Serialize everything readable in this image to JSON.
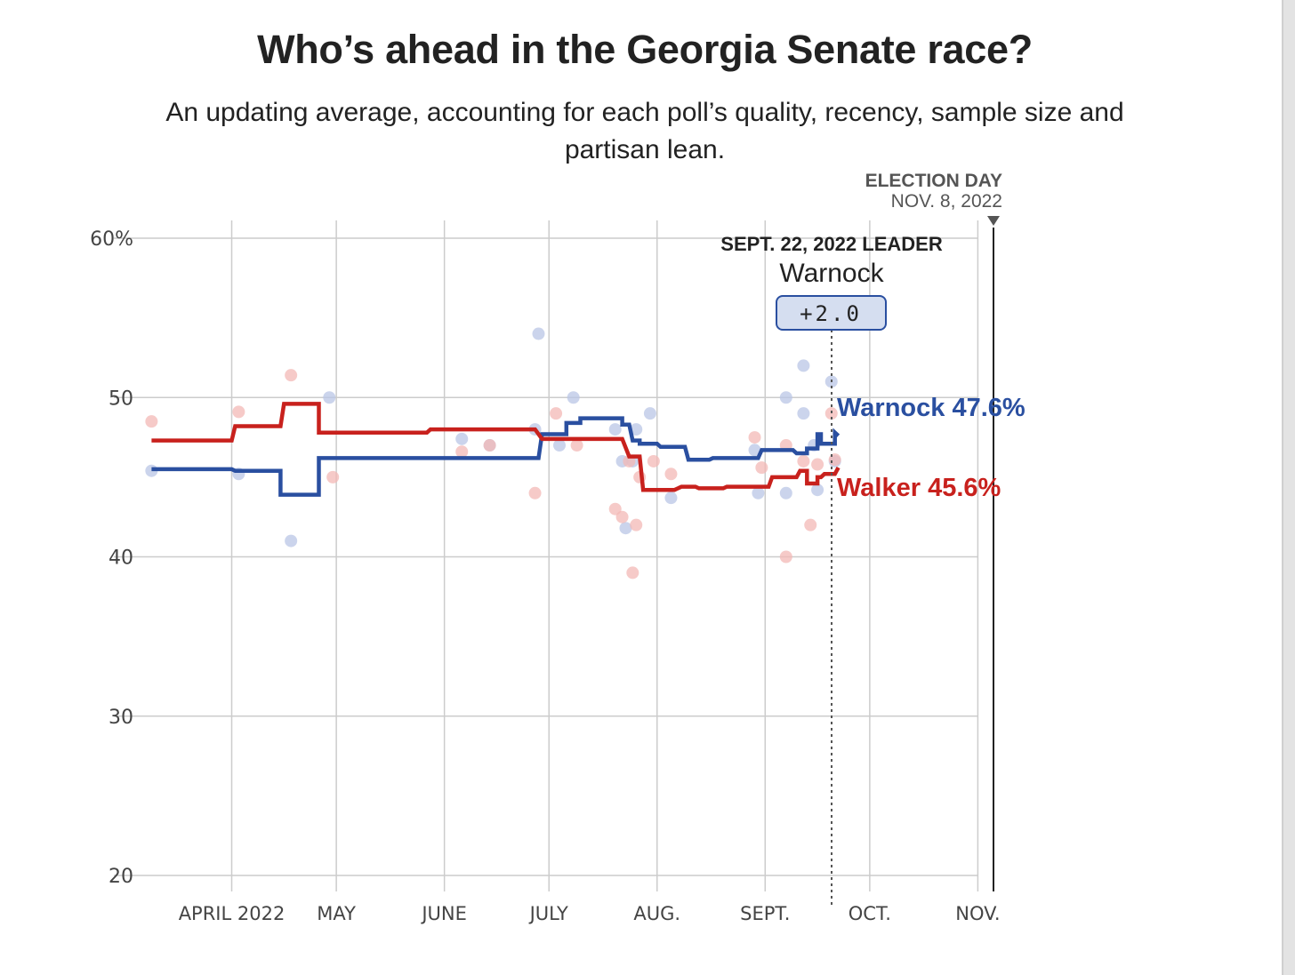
{
  "header": {
    "title": "Who’s ahead in the Georgia Senate race?",
    "subtitle": "An updating average, accounting for each poll’s quality, recency, sample size and partisan lean."
  },
  "colors": {
    "warnock": "#2a4fa0",
    "walker": "#c8211d",
    "warnock_dot": "#b9c6e6",
    "walker_dot": "#f3b8b6",
    "grid": "#cccccc"
  },
  "annotations": {
    "election_day_label": "ELECTION DAY",
    "election_day_date": "NOV. 8, 2022",
    "leader_label": "SEPT. 22, 2022 LEADER",
    "leader_name": "Warnock",
    "leader_margin": "+2.0",
    "warnock_end_label": "Warnock 47.6%",
    "walker_end_label": "Walker 45.6%"
  },
  "chart_data": {
    "type": "line",
    "title": "Who’s ahead in the Georgia Senate race?",
    "ylabel": "",
    "ylim": [
      20,
      60
    ],
    "yticks": [
      {
        "value": 60,
        "label": "60%"
      },
      {
        "value": 50,
        "label": "50"
      },
      {
        "value": 40,
        "label": "40"
      },
      {
        "value": 30,
        "label": "30"
      },
      {
        "value": 20,
        "label": "20"
      }
    ],
    "xticks": [
      {
        "day": 31,
        "label": "APRIL 2022"
      },
      {
        "day": 61,
        "label": "MAY"
      },
      {
        "day": 92,
        "label": "JUNE"
      },
      {
        "day": 122,
        "label": "JULY"
      },
      {
        "day": 153,
        "label": "AUG."
      },
      {
        "day": 184,
        "label": "SEPT."
      },
      {
        "day": 214,
        "label": "OCT."
      },
      {
        "day": 245,
        "label": "NOV."
      }
    ],
    "x_unit": "days since March 1, 2022",
    "xlim": [
      8,
      248
    ],
    "election_day": 252,
    "leader_day": 205,
    "series": [
      {
        "name": "Warnock",
        "color": "#2a4fa0",
        "points": [
          [
            8,
            45.5
          ],
          [
            31,
            45.5
          ],
          [
            32,
            45.4
          ],
          [
            45,
            45.4
          ],
          [
            45,
            43.9
          ],
          [
            56,
            43.9
          ],
          [
            56,
            46.2
          ],
          [
            107,
            46.2
          ],
          [
            119,
            46.2
          ],
          [
            120,
            47.7
          ],
          [
            127,
            47.7
          ],
          [
            127,
            48.4
          ],
          [
            131,
            48.4
          ],
          [
            131,
            48.7
          ],
          [
            143,
            48.7
          ],
          [
            143,
            48.3
          ],
          [
            145,
            48.3
          ],
          [
            146,
            47.3
          ],
          [
            148,
            47.3
          ],
          [
            148,
            47.1
          ],
          [
            153,
            47.1
          ],
          [
            154,
            46.9
          ],
          [
            161,
            46.9
          ],
          [
            162,
            46.1
          ],
          [
            168,
            46.1
          ],
          [
            169,
            46.2
          ],
          [
            182,
            46.2
          ],
          [
            183,
            46.7
          ],
          [
            192,
            46.7
          ],
          [
            193,
            46.5
          ],
          [
            196,
            46.5
          ],
          [
            196,
            46.8
          ],
          [
            199,
            46.8
          ],
          [
            199,
            47.7
          ],
          [
            200,
            47.7
          ],
          [
            200,
            47.1
          ],
          [
            204,
            47.1
          ],
          [
            204,
            47.8
          ],
          [
            205,
            47.6
          ]
        ]
      },
      {
        "name": "Walker",
        "color": "#c8211d",
        "points": [
          [
            8,
            47.3
          ],
          [
            31,
            47.3
          ],
          [
            32,
            48.2
          ],
          [
            45,
            48.2
          ],
          [
            46,
            49.6
          ],
          [
            56,
            49.6
          ],
          [
            56,
            47.8
          ],
          [
            87,
            47.8
          ],
          [
            88,
            48.0
          ],
          [
            115,
            48.0
          ],
          [
            118,
            48.0
          ],
          [
            120,
            47.4
          ],
          [
            143,
            47.4
          ],
          [
            145,
            46.3
          ],
          [
            148,
            46.3
          ],
          [
            149,
            44.2
          ],
          [
            158,
            44.2
          ],
          [
            160,
            44.4
          ],
          [
            164,
            44.4
          ],
          [
            165,
            44.3
          ],
          [
            172,
            44.3
          ],
          [
            173,
            44.4
          ],
          [
            185,
            44.4
          ],
          [
            186,
            45.0
          ],
          [
            193,
            45.0
          ],
          [
            194,
            45.4
          ],
          [
            196,
            45.4
          ],
          [
            196,
            44.6
          ],
          [
            199,
            44.6
          ],
          [
            199,
            45.0
          ],
          [
            200,
            45.0
          ],
          [
            201,
            45.2
          ],
          [
            204,
            45.2
          ],
          [
            205,
            45.6
          ]
        ]
      }
    ],
    "polls": {
      "Warnock": [
        [
          8,
          45.4
        ],
        [
          33,
          45.2
        ],
        [
          48,
          41.0
        ],
        [
          59,
          50.0
        ],
        [
          97,
          47.4
        ],
        [
          105,
          47.0
        ],
        [
          118,
          48.0
        ],
        [
          119,
          54.0
        ],
        [
          125,
          47.0
        ],
        [
          129,
          50.0
        ],
        [
          141,
          48.0
        ],
        [
          143,
          46.0
        ],
        [
          144,
          41.8
        ],
        [
          146,
          46.0
        ],
        [
          147,
          48.0
        ],
        [
          151,
          49.0
        ],
        [
          157,
          43.7
        ],
        [
          181,
          46.7
        ],
        [
          182,
          44.0
        ],
        [
          190,
          44.0
        ],
        [
          190,
          50.0
        ],
        [
          195,
          52.0
        ],
        [
          195,
          49.0
        ],
        [
          198,
          47.0
        ],
        [
          199,
          44.2
        ],
        [
          203,
          51.0
        ],
        [
          204,
          46.0
        ]
      ],
      "Walker": [
        [
          8,
          48.5
        ],
        [
          33,
          49.1
        ],
        [
          48,
          51.4
        ],
        [
          60,
          45.0
        ],
        [
          97,
          46.6
        ],
        [
          105,
          47.0
        ],
        [
          118,
          44.0
        ],
        [
          124,
          49.0
        ],
        [
          130,
          47.0
        ],
        [
          141,
          43.0
        ],
        [
          143,
          42.5
        ],
        [
          145,
          46.0
        ],
        [
          146,
          39.0
        ],
        [
          147,
          42.0
        ],
        [
          148,
          45.0
        ],
        [
          152,
          46.0
        ],
        [
          157,
          45.2
        ],
        [
          181,
          47.5
        ],
        [
          183,
          45.6
        ],
        [
          190,
          47.0
        ],
        [
          190,
          40.0
        ],
        [
          195,
          46.0
        ],
        [
          197,
          42.0
        ],
        [
          199,
          45.8
        ],
        [
          203,
          49.0
        ],
        [
          204,
          46.1
        ]
      ]
    }
  }
}
